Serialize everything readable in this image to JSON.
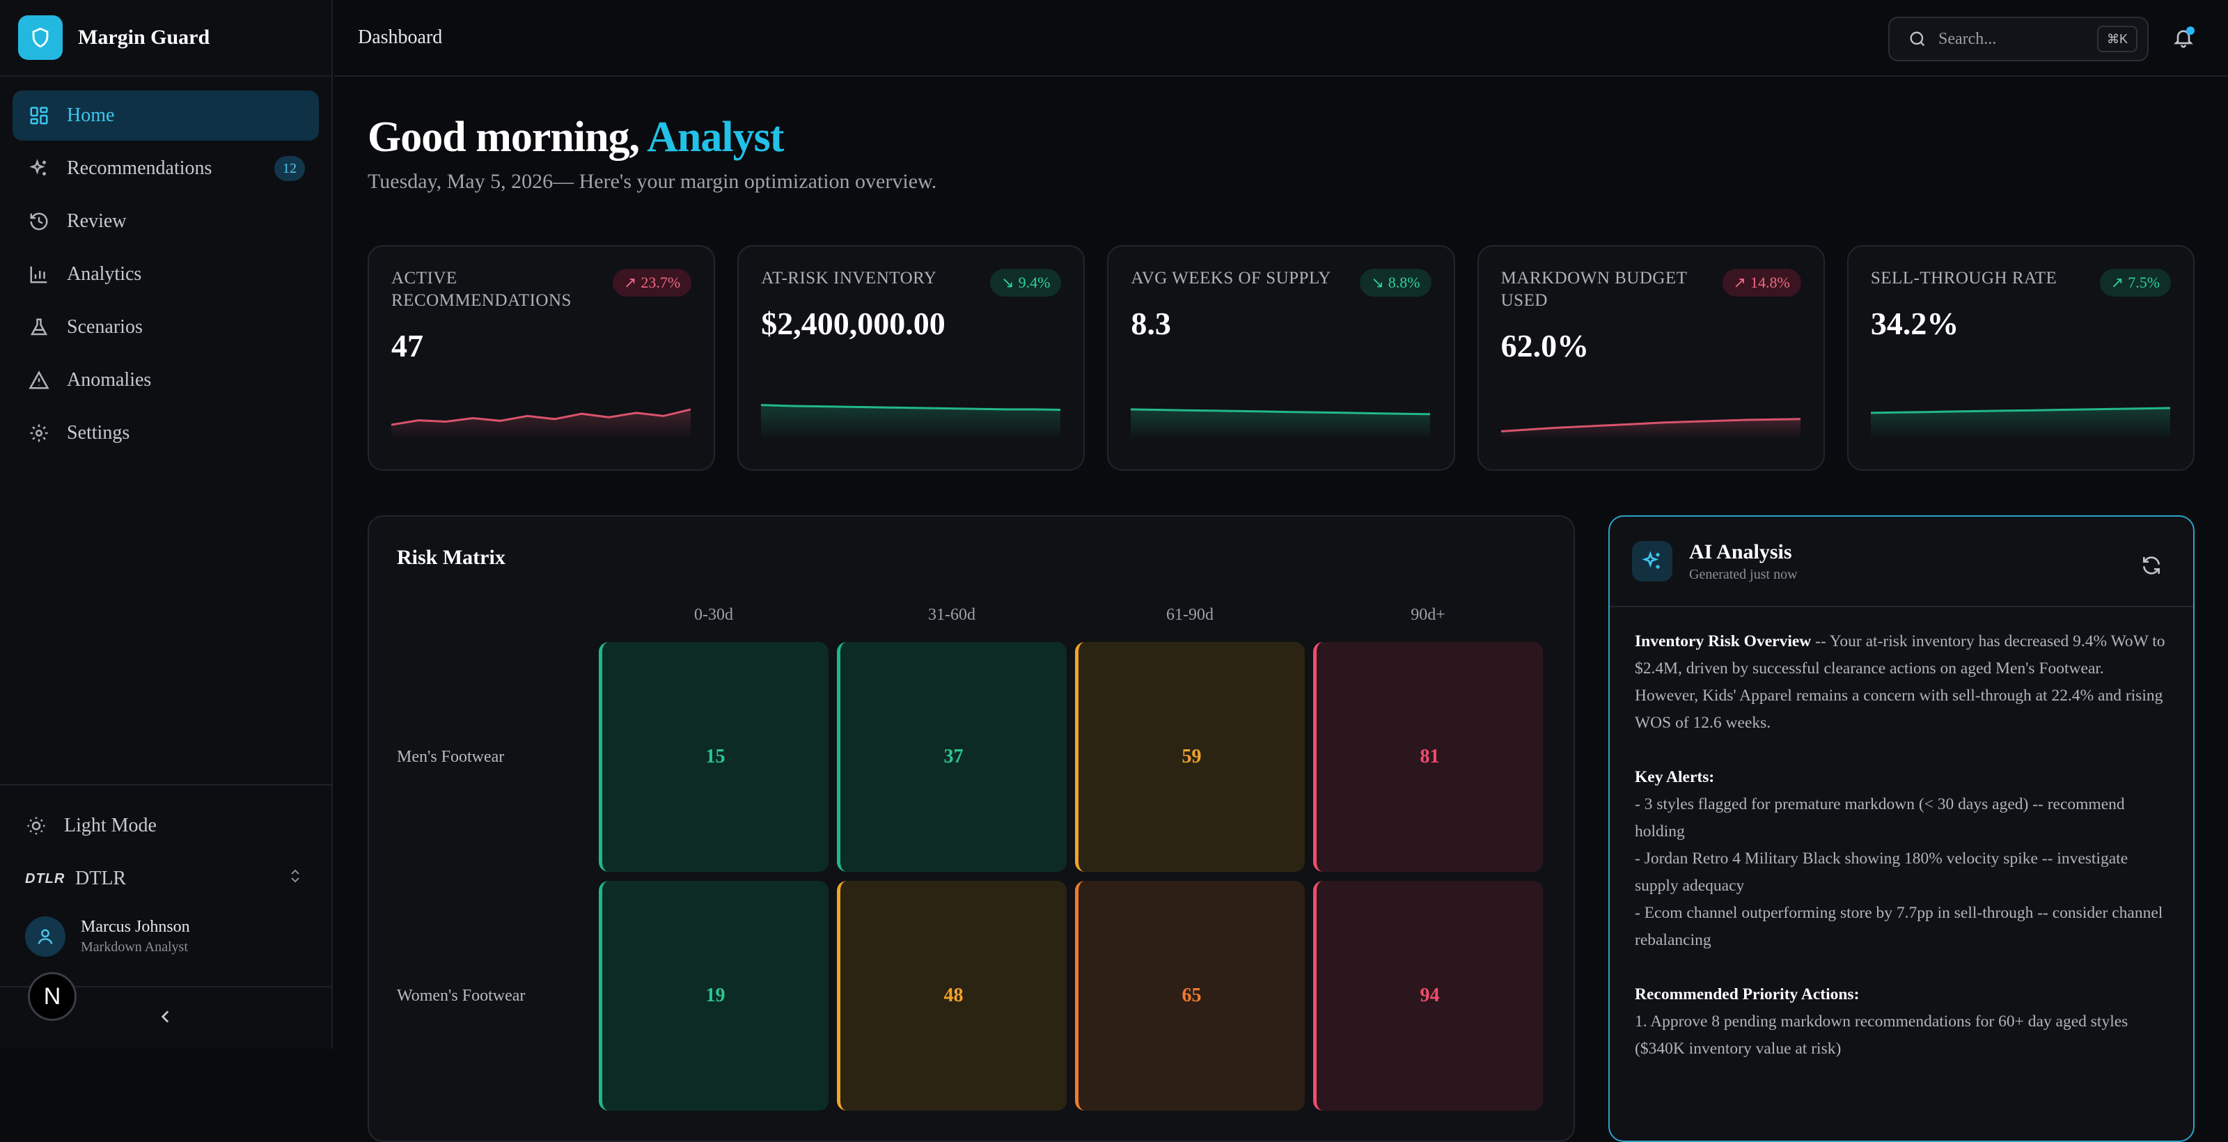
{
  "app": {
    "name": "Margin Guard",
    "colors": {
      "accent": "#22c1e8",
      "danger": "#ef4d6b",
      "success": "#29c98e",
      "warning": "#f2a32a"
    }
  },
  "sidebar": {
    "items": [
      {
        "label": "Home",
        "icon": "grid-icon",
        "active": true
      },
      {
        "label": "Recommendations",
        "icon": "sparkles-icon",
        "badge": "12"
      },
      {
        "label": "Review",
        "icon": "history-icon"
      },
      {
        "label": "Analytics",
        "icon": "bar-chart-icon"
      },
      {
        "label": "Scenarios",
        "icon": "flask-icon"
      },
      {
        "label": "Anomalies",
        "icon": "warning-icon"
      },
      {
        "label": "Settings",
        "icon": "gear-icon"
      }
    ],
    "theme_toggle": "Light Mode",
    "tenant": {
      "logo": "DTLR",
      "name": "DTLR"
    },
    "user": {
      "name": "Marcus Johnson",
      "role": "Markdown Analyst"
    },
    "dev_badge": "N"
  },
  "topbar": {
    "breadcrumb": "Dashboard",
    "search_placeholder": "Search...",
    "search_shortcut": "⌘K"
  },
  "header": {
    "greeting_prefix": "Good morning,",
    "greeting_name": "Analyst",
    "date": "Tuesday, May 5, 2026",
    "subtitle": "— Here's your margin optimization overview."
  },
  "kpis": [
    {
      "label": "ACTIVE RECOMMENDATIONS",
      "value": "47",
      "delta": "23.7%",
      "trend": "up",
      "tone": "bad",
      "spark": [
        0.35,
        0.45,
        0.42,
        0.5,
        0.44,
        0.55,
        0.48,
        0.6,
        0.52,
        0.62,
        0.55,
        0.7
      ]
    },
    {
      "label": "AT-RISK INVENTORY",
      "value": "$2,400,000.00",
      "delta": "9.4%",
      "trend": "down",
      "tone": "good",
      "spark": [
        0.8,
        0.78,
        0.77,
        0.76,
        0.75,
        0.74,
        0.73,
        0.72,
        0.71,
        0.7,
        0.7,
        0.69
      ]
    },
    {
      "label": "AVG WEEKS OF SUPPLY",
      "value": "8.3",
      "delta": "8.8%",
      "trend": "down",
      "tone": "good",
      "spark": [
        0.7,
        0.69,
        0.68,
        0.67,
        0.66,
        0.65,
        0.64,
        0.63,
        0.62,
        0.61,
        0.6,
        0.59
      ]
    },
    {
      "label": "MARKDOWN BUDGET USED",
      "value": "62.0%",
      "delta": "14.8%",
      "trend": "up",
      "tone": "bad",
      "spark": [
        0.2,
        0.24,
        0.28,
        0.31,
        0.34,
        0.37,
        0.4,
        0.42,
        0.44,
        0.46,
        0.47,
        0.48
      ]
    },
    {
      "label": "SELL-THROUGH RATE",
      "value": "34.2%",
      "delta": "7.5%",
      "trend": "up",
      "tone": "good",
      "spark": [
        0.62,
        0.63,
        0.64,
        0.65,
        0.66,
        0.67,
        0.68,
        0.69,
        0.7,
        0.71,
        0.72,
        0.73
      ]
    }
  ],
  "risk_matrix": {
    "title": "Risk Matrix",
    "columns": [
      "0-30d",
      "31-60d",
      "61-90d",
      "90d+"
    ],
    "rows": [
      {
        "label": "Men's Footwear",
        "cells": [
          {
            "value": "15",
            "level": "green"
          },
          {
            "value": "37",
            "level": "green"
          },
          {
            "value": "59",
            "level": "amber"
          },
          {
            "value": "81",
            "level": "red"
          }
        ]
      },
      {
        "label": "Women's Footwear",
        "cells": [
          {
            "value": "19",
            "level": "green"
          },
          {
            "value": "48",
            "level": "amber"
          },
          {
            "value": "65",
            "level": "orange"
          },
          {
            "value": "94",
            "level": "red"
          }
        ]
      }
    ]
  },
  "ai_panel": {
    "title": "AI Analysis",
    "subtitle": "Generated just now",
    "overview_heading": "Inventory Risk Overview",
    "overview_text": " -- Your at-risk inventory has decreased 9.4% WoW to $2.4M, driven by successful clearance actions on aged Men's Footwear. However, Kids' Apparel remains a concern with sell-through at 22.4% and rising WOS of 12.6 weeks.",
    "alerts_heading": "Key Alerts:",
    "alerts": [
      "- 3 styles flagged for premature markdown (< 30 days aged) -- recommend holding",
      "- Jordan Retro 4 Military Black showing 180% velocity spike -- investigate supply adequacy",
      "- Ecom channel outperforming store by 7.7pp in sell-through -- consider channel rebalancing"
    ],
    "actions_heading": "Recommended Priority Actions:",
    "actions": [
      "1. Approve 8 pending markdown recommendations for 60+ day aged styles ($340K inventory value at risk)"
    ]
  }
}
